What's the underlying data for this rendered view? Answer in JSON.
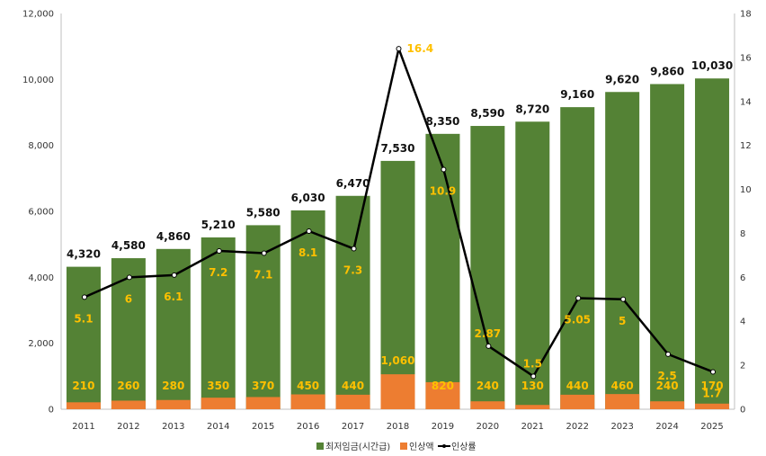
{
  "chart_data": {
    "type": "bar",
    "categories": [
      "2011",
      "2012",
      "2013",
      "2014",
      "2015",
      "2016",
      "2017",
      "2018",
      "2019",
      "2020",
      "2021",
      "2022",
      "2023",
      "2024",
      "2025"
    ],
    "series": [
      {
        "name": "최저임금(시간급)",
        "type": "bar",
        "axis": "left",
        "color": "#548235",
        "values": [
          4320,
          4580,
          4860,
          5210,
          5580,
          6030,
          6470,
          7530,
          8350,
          8590,
          8720,
          9160,
          9620,
          9860,
          10030
        ],
        "labels": [
          "4,320",
          "4,580",
          "4,860",
          "5,210",
          "5,580",
          "6,030",
          "6,470",
          "7,530",
          "8,350",
          "8,590",
          "8,720",
          "9,160",
          "9,620",
          "9,860",
          "10,030"
        ]
      },
      {
        "name": "인상액",
        "type": "bar",
        "axis": "left",
        "color": "#ed7d31",
        "values": [
          210,
          260,
          280,
          350,
          370,
          450,
          440,
          1060,
          820,
          240,
          130,
          440,
          460,
          240,
          170
        ],
        "labels": [
          "210",
          "260",
          "280",
          "350",
          "370",
          "450",
          "440",
          "1,060",
          "820",
          "240",
          "130",
          "440",
          "460",
          "240",
          "170"
        ]
      },
      {
        "name": "인상률",
        "type": "line",
        "axis": "right",
        "color": "#000000",
        "values": [
          5.1,
          6,
          6.1,
          7.2,
          7.1,
          8.1,
          7.3,
          16.4,
          10.9,
          2.87,
          1.5,
          5.05,
          5,
          2.5,
          1.7
        ],
        "labels": [
          "5.1",
          "6",
          "6.1",
          "7.2",
          "7.1",
          "8.1",
          "7.3",
          "16.4",
          "10.9",
          "2.87",
          "1.5",
          "5.05",
          "5",
          "2.5",
          "1.7"
        ]
      }
    ],
    "ylim": [
      0,
      12000
    ],
    "y2lim": [
      0,
      18
    ],
    "yticks": [
      "0",
      "2,000",
      "4,000",
      "6,000",
      "8,000",
      "10,000",
      "12,000"
    ],
    "y2ticks": [
      "0",
      "2",
      "4",
      "6",
      "8",
      "10",
      "12",
      "14",
      "16",
      "18"
    ],
    "grid": false,
    "legend_position": "bottom",
    "label_color": "#ffc000",
    "title": "",
    "xlabel": "",
    "ylabel": ""
  }
}
